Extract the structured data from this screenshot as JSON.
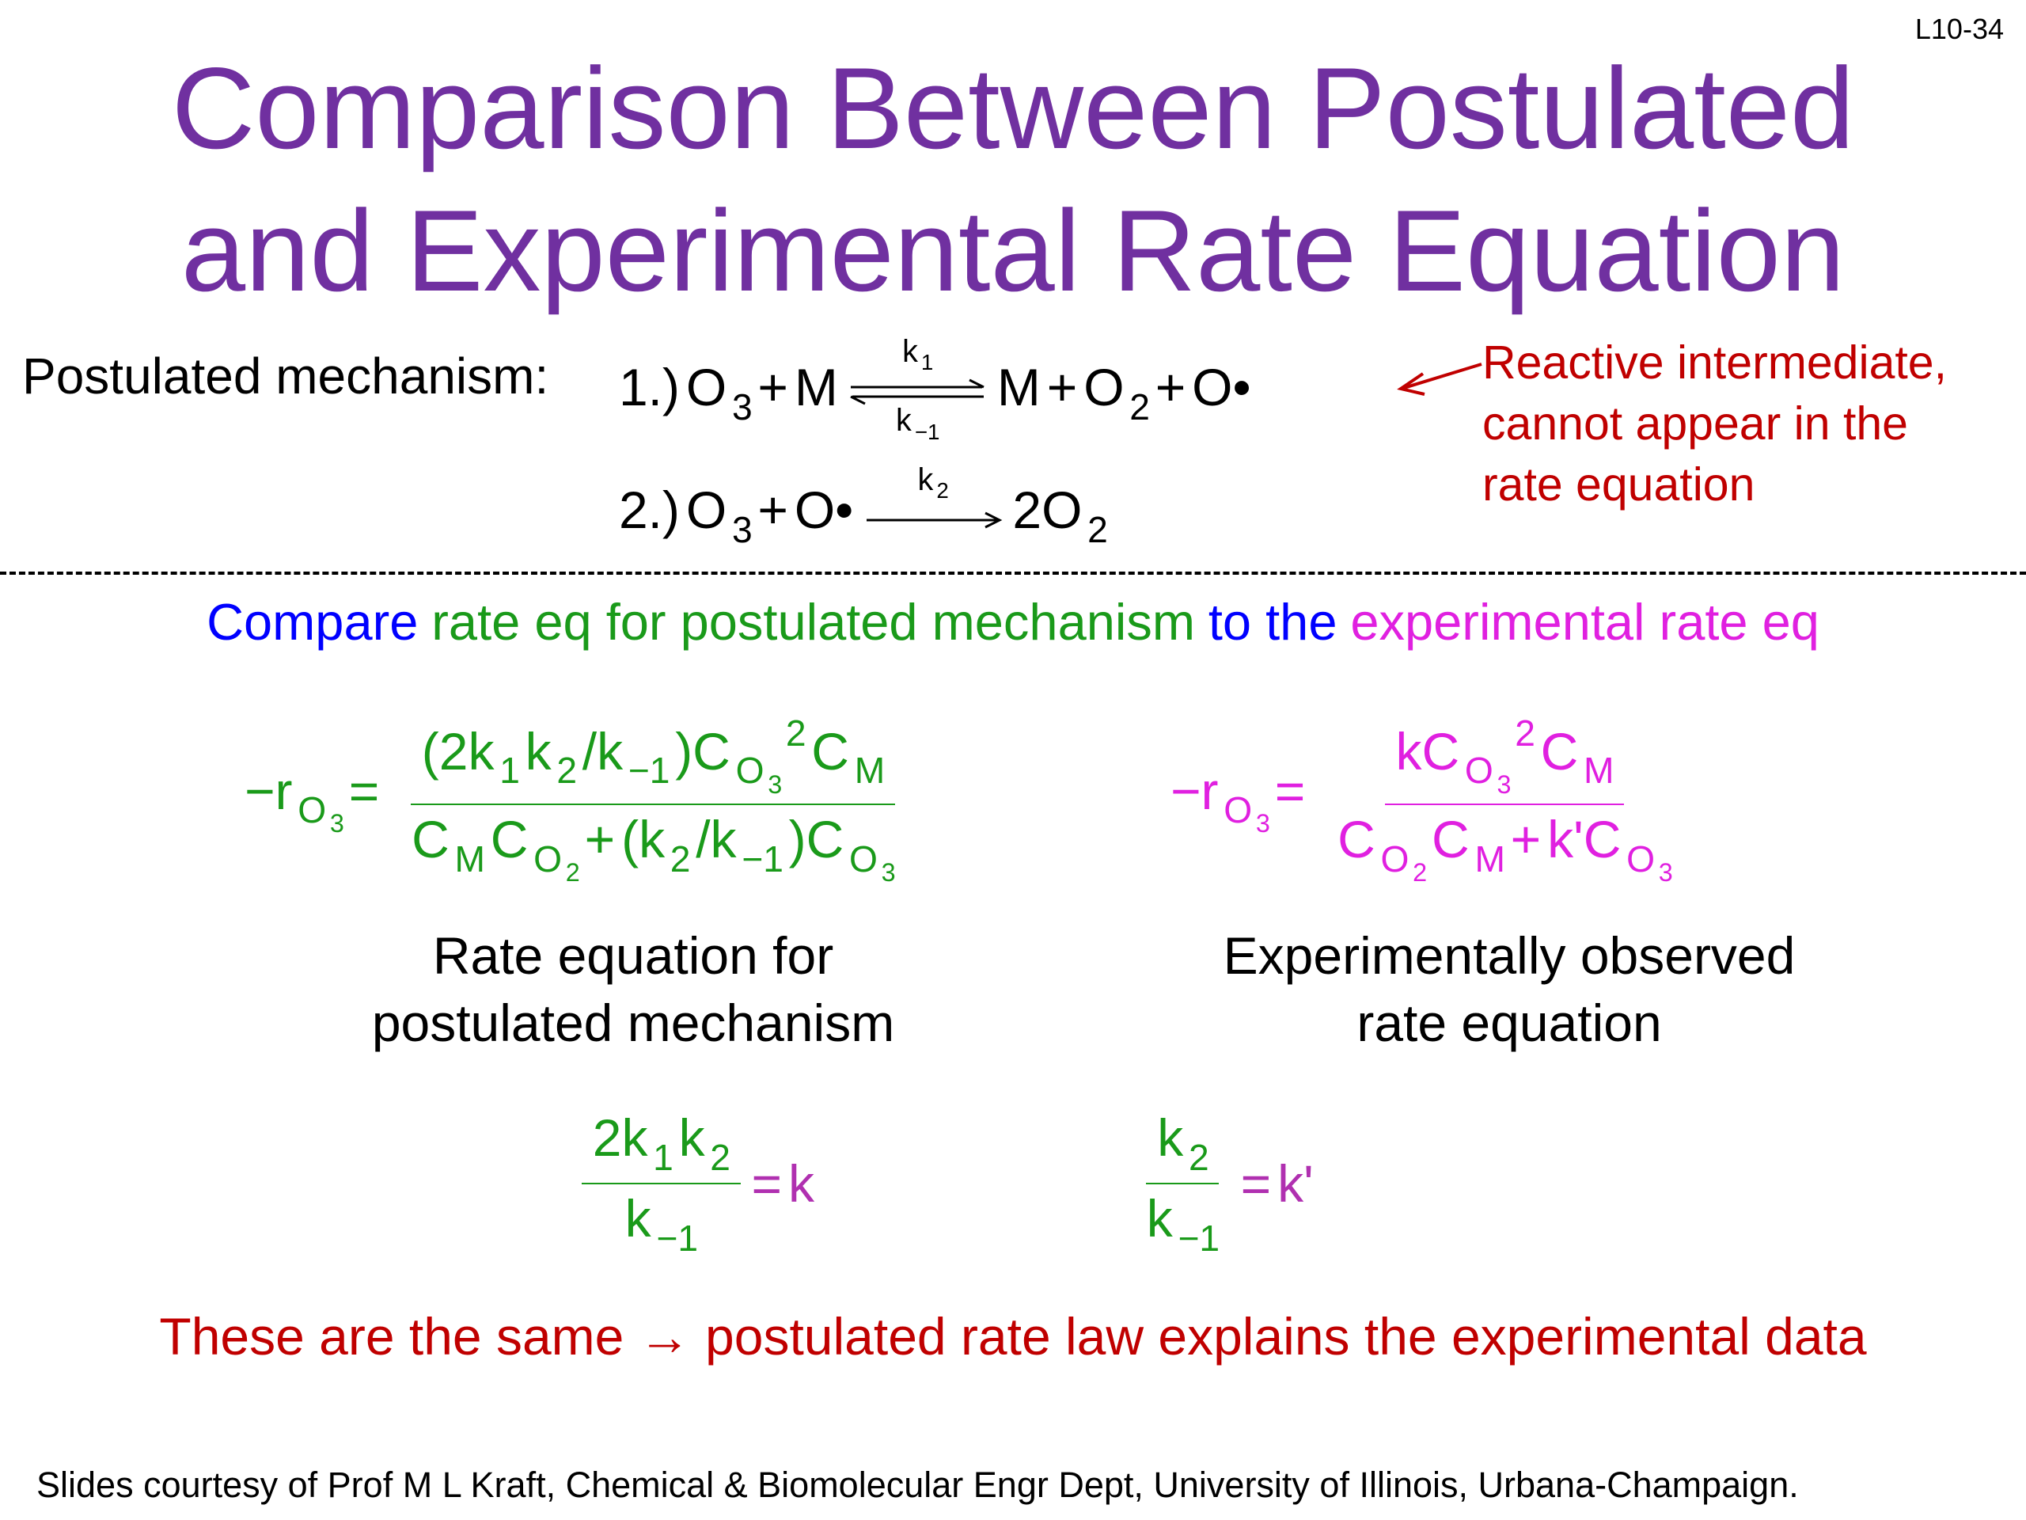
{
  "slide_number": "L10-34",
  "title": [
    "Comparison Between Postulated",
    "and Experimental Rate Equation"
  ],
  "title_color": "#7030a0",
  "mechanism": {
    "label": "Postulated mechanism:",
    "steps": [
      [
        "1.)",
        "O",
        {
          "sub": "3"
        },
        "+",
        "M",
        {
          "arrow": "equilibrium",
          "over": [
            "k",
            {
              "sub": "1"
            }
          ],
          "under": [
            "k",
            {
              "sub": "−1"
            }
          ]
        },
        "M",
        "+",
        "O",
        {
          "sub": "2"
        },
        "+",
        "O•"
      ],
      [
        "2.)",
        "O",
        {
          "sub": "3"
        },
        "+",
        "O•",
        {
          "arrow": "forward",
          "over": [
            "k",
            {
              "sub": "2"
            }
          ]
        },
        "2O",
        {
          "sub": "2"
        }
      ]
    ],
    "note": [
      "Reactive intermediate,",
      "cannot appear in the",
      "rate equation"
    ],
    "note_color": "#c00000"
  },
  "comparison": [
    {
      "text": "Compare",
      "color": "#0000ff"
    },
    {
      "text": "rate eq for postulated mechanism",
      "color": "#1a9a1a"
    },
    {
      "text": "to the",
      "color": "#0000ff"
    },
    {
      "text": "experimental rate eq",
      "color": "#e020e0"
    }
  ],
  "equations": [
    {
      "color": "#1a9a1a",
      "lhs": [
        "−r",
        {
          "sub": [
            "O",
            {
              "sub": "3"
            }
          ]
        },
        "="
      ],
      "rhs": {
        "num": [
          "(2k",
          {
            "sub": "1"
          },
          "k",
          {
            "sub": "2"
          },
          "/k",
          {
            "sub": "−1"
          },
          ")C",
          {
            "sub": [
              "O",
              {
                "sub": "3"
              }
            ]
          },
          {
            "sup": "2"
          },
          "C",
          {
            "sub": "M"
          }
        ],
        "den": [
          "C",
          {
            "sub": "M"
          },
          "C",
          {
            "sub": [
              "O",
              {
                "sub": "2"
              }
            ]
          },
          "+",
          "(k",
          {
            "sub": "2"
          },
          "/k",
          {
            "sub": "−1"
          },
          ")C",
          {
            "sub": [
              "O",
              {
                "sub": "3"
              }
            ]
          }
        ]
      },
      "caption": [
        "Rate equation for",
        "postulated mechanism"
      ]
    },
    {
      "color": "#e020e0",
      "lhs": [
        "−r",
        {
          "sub": [
            "O",
            {
              "sub": "3"
            }
          ]
        },
        "="
      ],
      "rhs": {
        "num": [
          "kC",
          {
            "sub": [
              "O",
              {
                "sub": "3"
              }
            ]
          },
          {
            "sup": "2"
          },
          "C",
          {
            "sub": "M"
          }
        ],
        "den": [
          "C",
          {
            "sub": [
              "O",
              {
                "sub": "2"
              }
            ]
          },
          "C",
          {
            "sub": "M"
          },
          "+",
          "k'C",
          {
            "sub": [
              "O",
              {
                "sub": "3"
              }
            ]
          }
        ]
      },
      "caption": [
        "Experimentally observed",
        "rate equation"
      ]
    }
  ],
  "constants": [
    {
      "lhs": {
        "num": [
          "2k",
          {
            "sub": "1"
          },
          "k",
          {
            "sub": "2"
          }
        ],
        "den": [
          "k",
          {
            "sub": "−1"
          }
        ]
      },
      "rhs": [
        "=",
        "k"
      ],
      "lhs_color": "#1a9a1a",
      "rhs_color": "#b030b0"
    },
    {
      "lhs": {
        "num": [
          "k",
          {
            "sub": "2"
          }
        ],
        "den": [
          "k",
          {
            "sub": "−1"
          }
        ]
      },
      "rhs": [
        "=",
        "k'"
      ],
      "lhs_color": "#1a9a1a",
      "rhs_color": "#b030b0"
    }
  ],
  "conclusion": {
    "text": "These are the same → postulated rate law explains the experimental data",
    "color": "#c00000"
  },
  "footer": "Slides courtesy of Prof M L Kraft, Chemical & Biomolecular Engr Dept, University of Illinois, Urbana-Champaign."
}
